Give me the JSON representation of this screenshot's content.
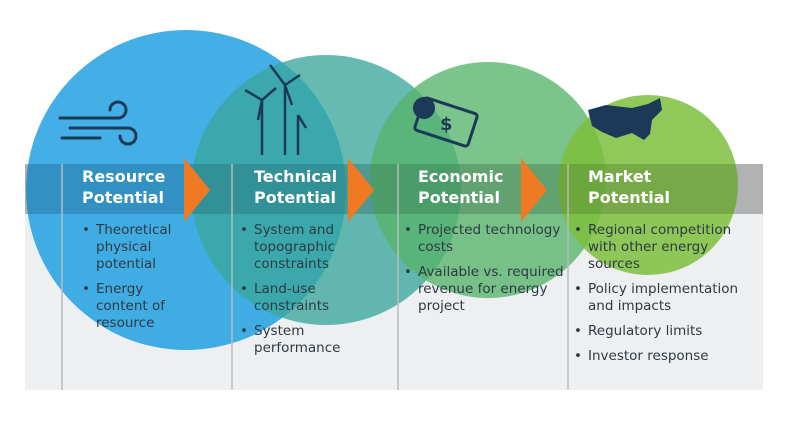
{
  "colors": {
    "resource": "#1a9ee0",
    "technical": "#3aa79c",
    "economic": "#56b46a",
    "market": "#7cbf3c",
    "arrow": "#ef7a23",
    "panel": "#eeeff1",
    "header_band": "#c9cbcd"
  },
  "stages": [
    {
      "title_line1": "Resource",
      "title_line2": "Potential",
      "icon": "wind-icon",
      "bullets": [
        "Theoretical physical potential",
        "Energy content of resource"
      ]
    },
    {
      "title_line1": "Technical",
      "title_line2": "Potential",
      "icon": "wind-turbine-icon",
      "bullets": [
        "System and topographic constraints",
        "Land-use constraints",
        "System performance"
      ]
    },
    {
      "title_line1": "Economic",
      "title_line2": "Potential",
      "icon": "money-icon",
      "bullets": [
        "Projected technology costs",
        "Available vs. required revenue for energy project"
      ]
    },
    {
      "title_line1": "Market",
      "title_line2": "Potential",
      "icon": "us-map-icon",
      "bullets": [
        "Regional competition with other energy sources",
        "Policy implementation and impacts",
        "Regulatory limits",
        "Investor response"
      ]
    }
  ]
}
